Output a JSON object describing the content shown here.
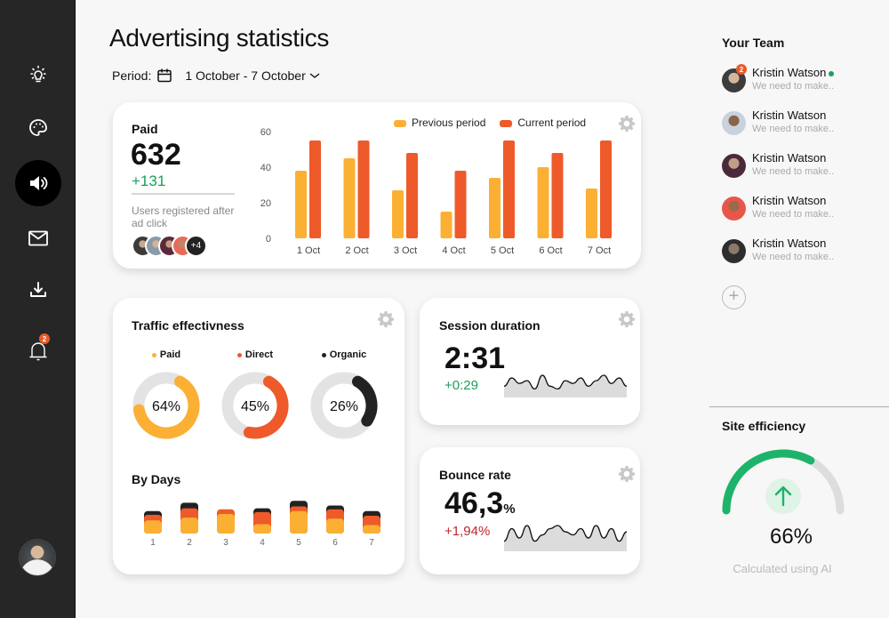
{
  "header": {
    "title": "Advertising statistics",
    "period_label": "Period:",
    "period_range": "1 October - 7 October"
  },
  "sidebar": {
    "items": [
      {
        "icon": "lightbulb-icon",
        "label": "Ideas"
      },
      {
        "icon": "palette-icon",
        "label": "Design"
      },
      {
        "icon": "speaker-icon",
        "label": "Advertising",
        "active": true
      },
      {
        "icon": "mail-icon",
        "label": "Mail"
      },
      {
        "icon": "download-icon",
        "label": "Downloads"
      },
      {
        "icon": "bell-icon",
        "label": "Notifications",
        "badge": "2"
      }
    ]
  },
  "paid": {
    "title": "Paid",
    "value": "632",
    "delta": "+131",
    "note": "Users registered after ad click",
    "more_avatars": "+4",
    "legend_prev": "Previous period",
    "legend_curr": "Current period"
  },
  "traffic": {
    "title": "Traffic effectivness",
    "donuts": [
      {
        "label": "Paid",
        "value": 64,
        "text": "64%",
        "color": "#fbb034"
      },
      {
        "label": "Direct",
        "value": 45,
        "text": "45%",
        "color": "#ee5a2a"
      },
      {
        "label": "Organic",
        "value": 26,
        "text": "26%",
        "color": "#222222"
      }
    ],
    "by_days_title": "By Days"
  },
  "session": {
    "title": "Session duration",
    "value": "2:31",
    "delta": "+0:29"
  },
  "bounce": {
    "title": "Bounce rate",
    "value": "46,3",
    "unit": "%",
    "delta": "+1,94%"
  },
  "team": {
    "title": "Your Team",
    "members": [
      {
        "name": "Kristin Watson",
        "message": "We need to make..",
        "online": true,
        "badge": "2"
      },
      {
        "name": "Kristin Watson",
        "message": "We need to make.."
      },
      {
        "name": "Kristin Watson",
        "message": "We need to make.."
      },
      {
        "name": "Kristin Watson",
        "message": "We need to make.."
      },
      {
        "name": "Kristin Watson",
        "message": "We need to make.."
      }
    ]
  },
  "efficiency": {
    "title": "Site efficiency",
    "value": 66,
    "value_text": "66%",
    "note": "Calculated using AI",
    "color": "#1db36a"
  },
  "colors": {
    "previous": "#fbb034",
    "current": "#ee5a2a",
    "dark": "#222222",
    "positive": "#1aa05a",
    "negative": "#c0262b"
  },
  "chart_data": [
    {
      "type": "bar",
      "title": "Paid",
      "categories": [
        "1 Oct",
        "2 Oct",
        "3 Oct",
        "4 Oct",
        "5 Oct",
        "6 Oct",
        "7 Oct"
      ],
      "series": [
        {
          "name": "Previous period",
          "values": [
            38,
            45,
            27,
            15,
            34,
            40,
            28
          ]
        },
        {
          "name": "Current period",
          "values": [
            55,
            55,
            48,
            38,
            55,
            48,
            55
          ]
        }
      ],
      "yticks": [
        0,
        20,
        40,
        60
      ],
      "ylim": [
        0,
        60
      ],
      "legend": "top-right",
      "grid": false
    },
    {
      "type": "bar",
      "title": "By Days",
      "stacked": true,
      "categories": [
        "1",
        "2",
        "3",
        "4",
        "5",
        "6",
        "7"
      ],
      "series": [
        {
          "name": "Paid",
          "values": [
            14,
            17,
            21,
            10,
            24,
            16,
            9
          ]
        },
        {
          "name": "Direct",
          "values": [
            6,
            10,
            5,
            13,
            5,
            10,
            10
          ]
        },
        {
          "name": "Organic",
          "values": [
            4,
            6,
            0,
            4,
            6,
            4,
            5
          ]
        }
      ]
    },
    {
      "type": "area",
      "title": "Session duration trend",
      "values": [
        3,
        6,
        4,
        5,
        2,
        7,
        3,
        2,
        5,
        4,
        6,
        3,
        5,
        7,
        4,
        6,
        3
      ]
    },
    {
      "type": "area",
      "title": "Bounce rate trend",
      "values": [
        2,
        6,
        3,
        7,
        2,
        4,
        6,
        7,
        5,
        4,
        6,
        3,
        7,
        3,
        6,
        2,
        5
      ]
    }
  ]
}
